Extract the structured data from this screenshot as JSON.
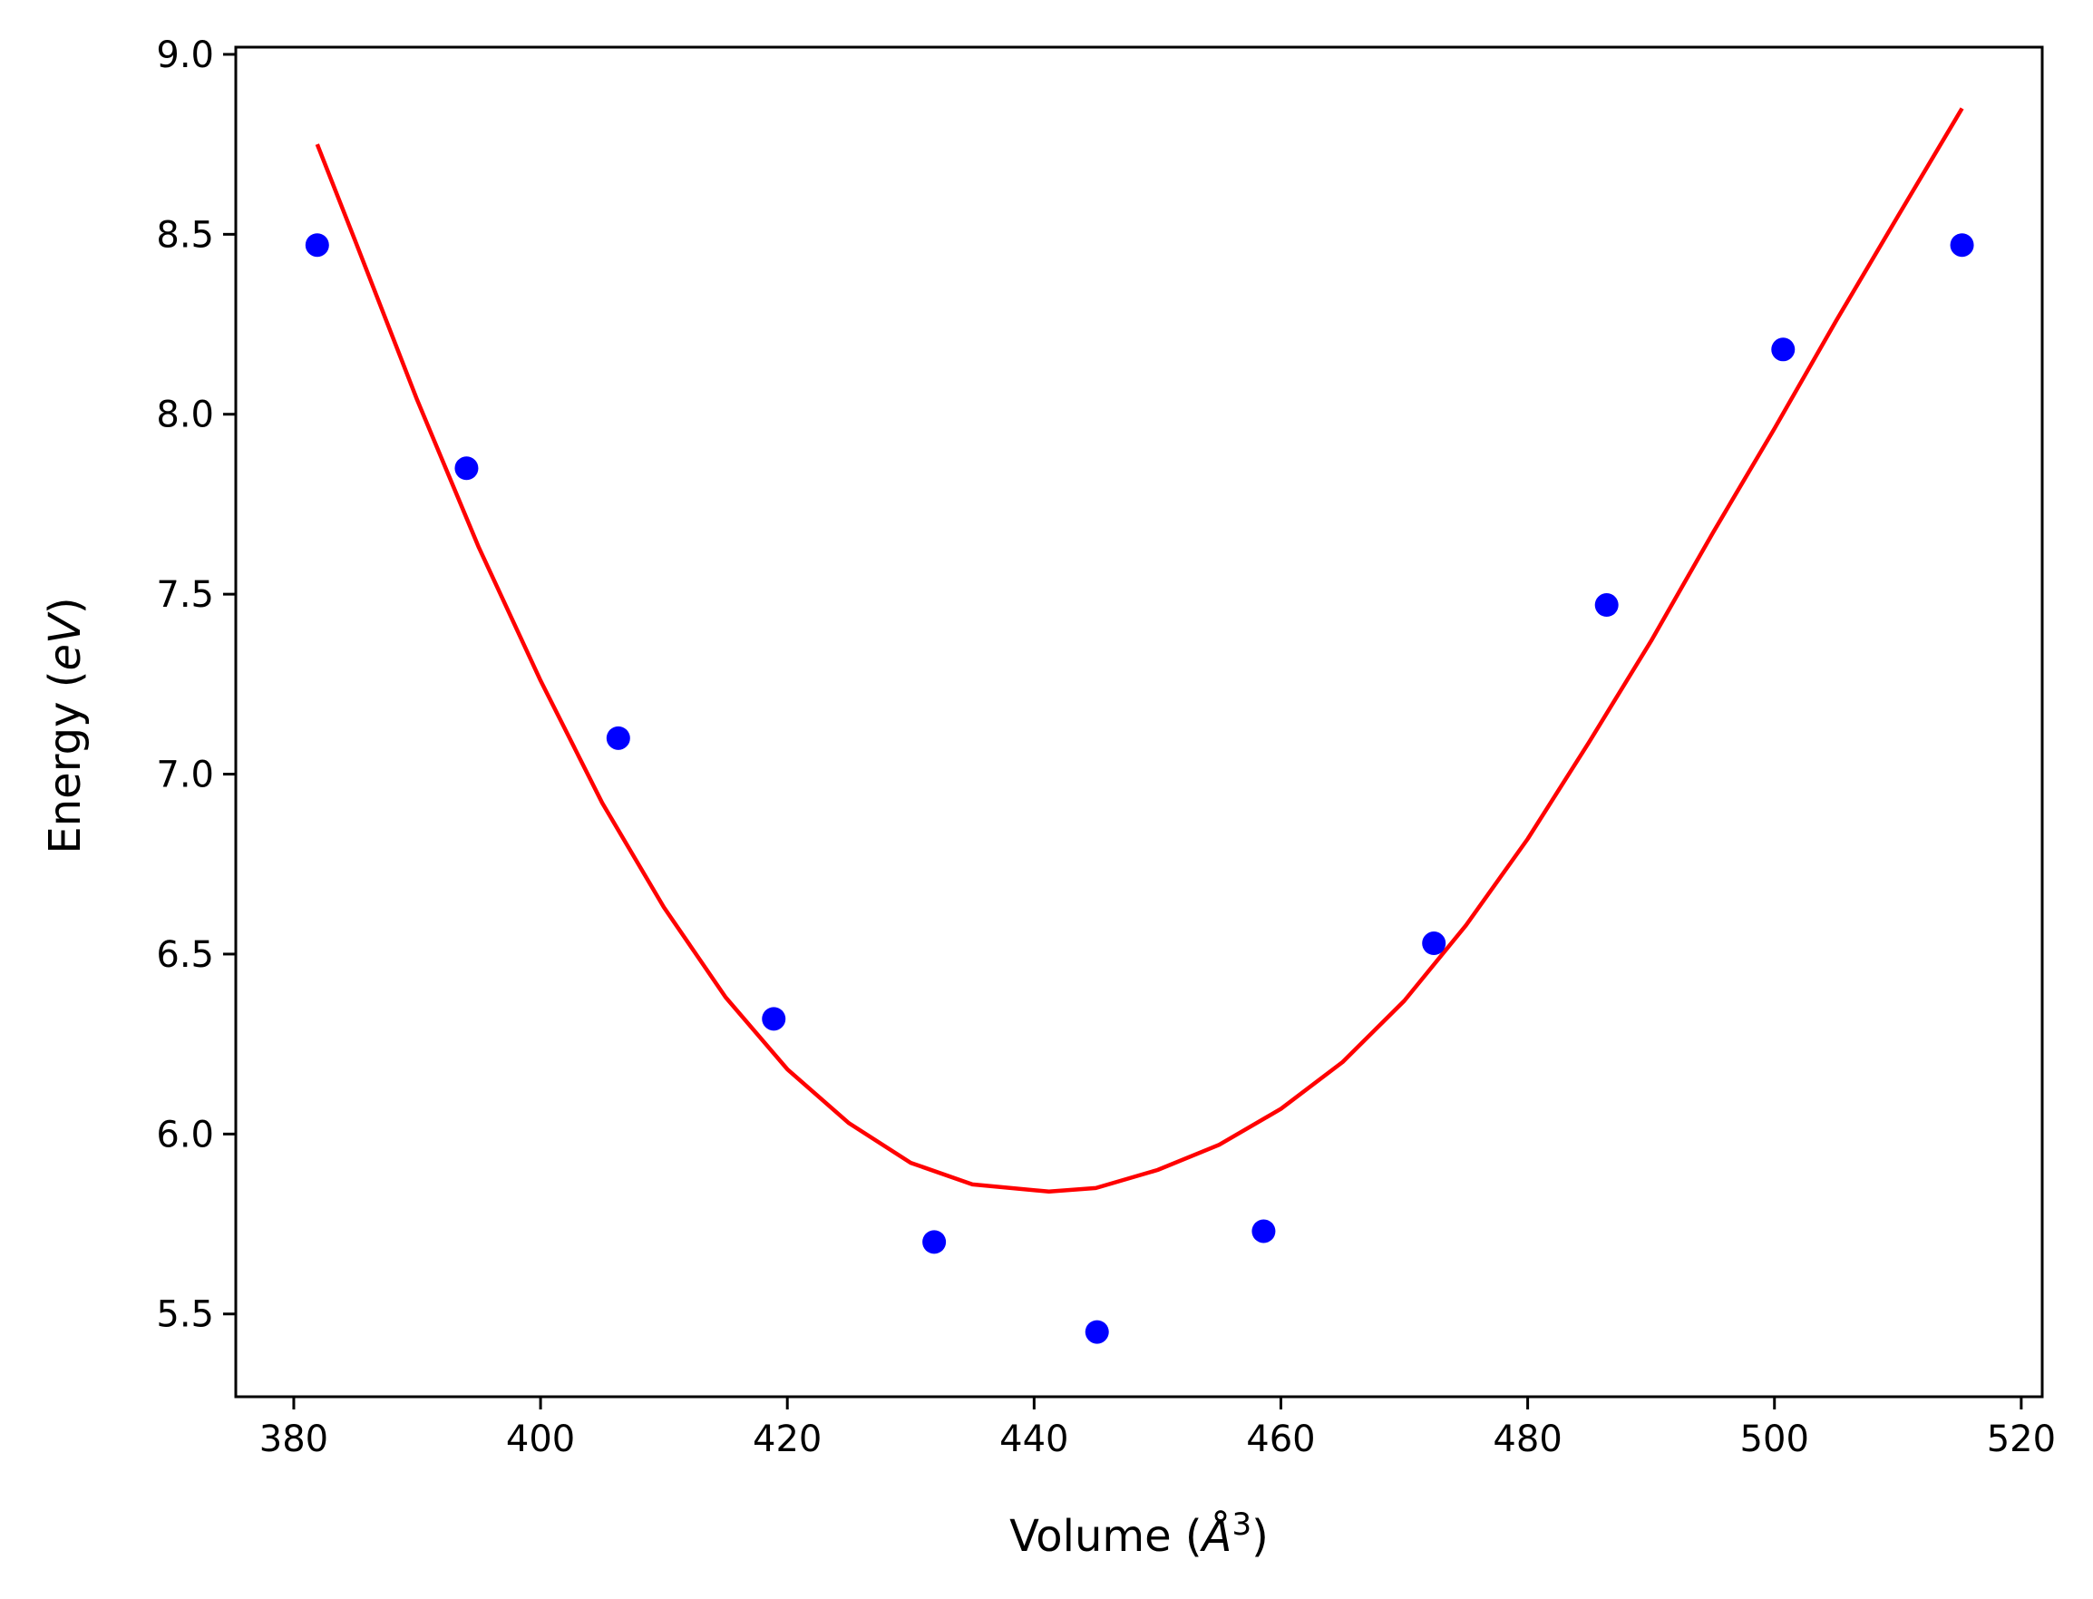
{
  "chart_data": {
    "type": "scatter",
    "xlabel": "Volume (Å³)",
    "xlabel_parts": {
      "prefix": "Volume (",
      "symbol": "Å",
      "sup": "3",
      "suffix": ")"
    },
    "ylabel": "Energy (eV)",
    "ylabel_parts": {
      "prefix": "Energy (",
      "unit": "eV",
      "suffix": ")"
    },
    "xlim": [
      375.3,
      521.7
    ],
    "ylim": [
      5.27,
      9.02
    ],
    "x_ticks": [
      380,
      400,
      420,
      440,
      460,
      480,
      500,
      520
    ],
    "x_tick_labels": [
      "380",
      "400",
      "420",
      "440",
      "460",
      "480",
      "500",
      "520"
    ],
    "y_ticks": [
      5.5,
      6.0,
      6.5,
      7.0,
      7.5,
      8.0,
      8.5,
      9.0
    ],
    "y_tick_labels": [
      "5.5",
      "6.0",
      "6.5",
      "7.0",
      "7.5",
      "8.0",
      "8.5",
      "9.0"
    ],
    "grid": false,
    "series": [
      {
        "kind": "scatter",
        "color": "#0000ff",
        "points": [
          {
            "x": 381.9,
            "y": 8.47
          },
          {
            "x": 394.0,
            "y": 7.85
          },
          {
            "x": 406.3,
            "y": 7.1
          },
          {
            "x": 418.9,
            "y": 6.32
          },
          {
            "x": 431.9,
            "y": 5.7
          },
          {
            "x": 445.1,
            "y": 5.45
          },
          {
            "x": 458.6,
            "y": 5.73
          },
          {
            "x": 472.4,
            "y": 6.53
          },
          {
            "x": 486.4,
            "y": 7.47
          },
          {
            "x": 500.7,
            "y": 8.18
          },
          {
            "x": 515.2,
            "y": 8.47
          }
        ]
      },
      {
        "kind": "line",
        "color": "#ff0000",
        "x": [
          381.9,
          385,
          390,
          395,
          400,
          405,
          410,
          415,
          420,
          425,
          430,
          435,
          441.2,
          445,
          450,
          455,
          460,
          465,
          470,
          475,
          480,
          485,
          490,
          495,
          500,
          505,
          510,
          515.2
        ],
        "y": [
          8.75,
          8.48,
          8.04,
          7.63,
          7.26,
          6.92,
          6.63,
          6.38,
          6.18,
          6.03,
          5.92,
          5.86,
          5.84,
          5.85,
          5.9,
          5.97,
          6.07,
          6.2,
          6.37,
          6.58,
          6.82,
          7.09,
          7.37,
          7.67,
          7.96,
          8.26,
          8.55,
          8.85
        ]
      }
    ]
  }
}
